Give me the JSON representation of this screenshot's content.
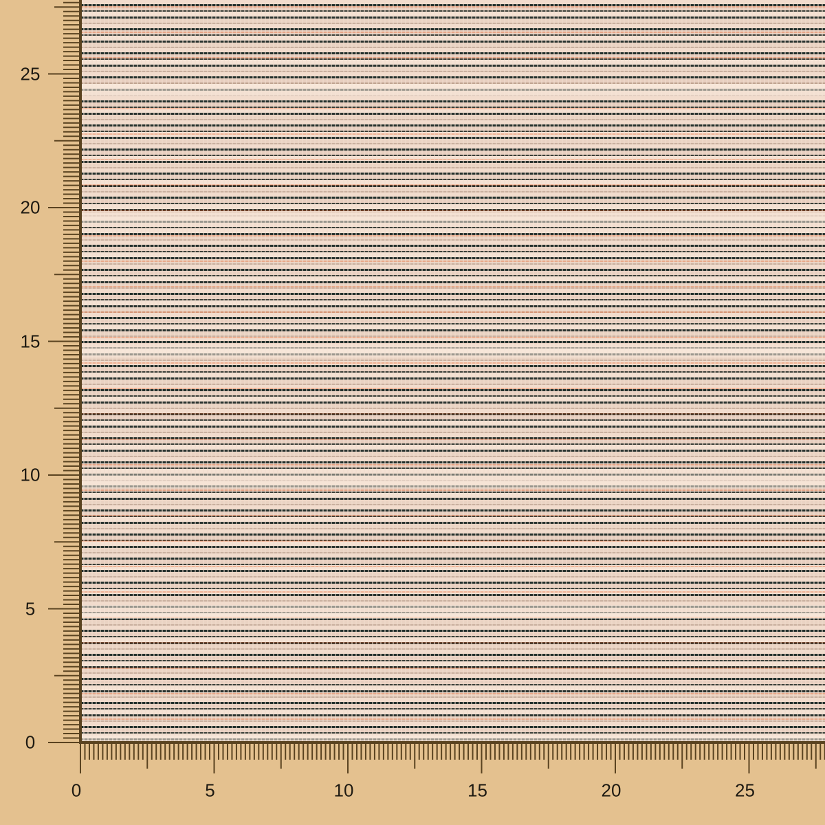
{
  "image": {
    "subject": "woven tweed fabric swatch",
    "colors": {
      "background": "#e4c18f",
      "ruler": "#5a4320",
      "fabric_dark": "#23302c",
      "fabric_light": "#f2dccd",
      "fabric_accent": "#e2561c"
    }
  },
  "ruler": {
    "x_labels": [
      "0",
      "5",
      "10",
      "15",
      "20",
      "25"
    ],
    "y_labels": [
      "0",
      "5",
      "10",
      "15",
      "20",
      "25"
    ]
  }
}
